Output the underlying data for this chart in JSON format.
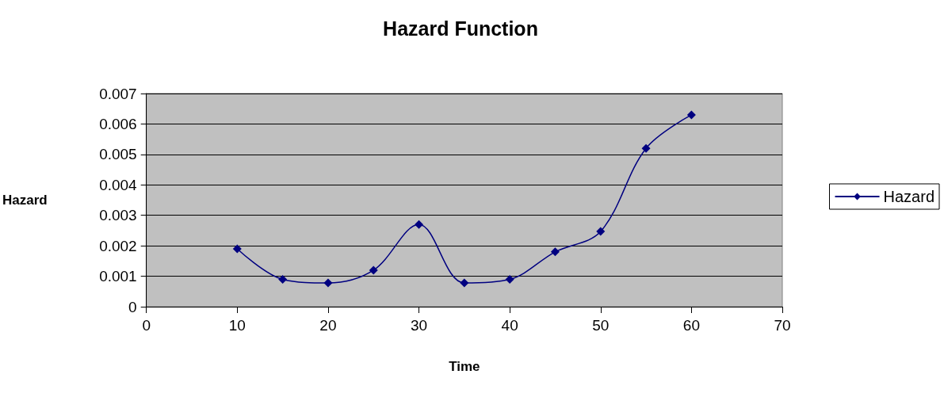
{
  "chart_data": {
    "type": "line",
    "title": "Hazard Function",
    "xlabel": "Time",
    "ylabel": "Hazard",
    "x": [
      10,
      15,
      20,
      25,
      30,
      35,
      40,
      45,
      50,
      55,
      60
    ],
    "series": [
      {
        "name": "Hazard",
        "color": "#000080",
        "values": [
          0.0019,
          0.0009,
          0.00078,
          0.0012,
          0.0027,
          0.00078,
          0.0009,
          0.0018,
          0.00247,
          0.0052,
          0.0063
        ]
      }
    ],
    "xlim": [
      0,
      70
    ],
    "xticks": [
      0,
      10,
      20,
      30,
      40,
      50,
      60,
      70
    ],
    "ylim": [
      0,
      0.007
    ],
    "yticks": [
      0,
      0.001,
      0.002,
      0.003,
      0.004,
      0.005,
      0.006,
      0.007
    ],
    "grid": "y",
    "legend": "right",
    "marker": "diamond",
    "line_style": "solid"
  }
}
